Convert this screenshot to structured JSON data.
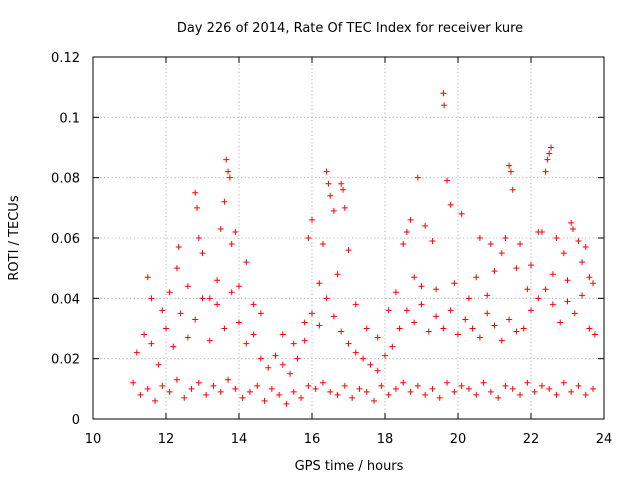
{
  "chart_data": {
    "type": "scatter",
    "title": "Day 226 of 2014, Rate Of TEC Index for receiver kure",
    "xlabel": "GPS time / hours",
    "ylabel": "ROTI / TECUs",
    "xlim": [
      10,
      24
    ],
    "ylim": [
      0,
      0.12
    ],
    "xticks": [
      "10",
      "12",
      "14",
      "16",
      "18",
      "20",
      "22",
      "24"
    ],
    "yticks": [
      "0",
      "0.02",
      "0.04",
      "0.06",
      "0.08",
      "0.1",
      "0.12"
    ],
    "grid": true,
    "marker": "plus",
    "color": "#ff0000",
    "series": [
      {
        "x": [
          11.1,
          11.3,
          11.5,
          11.7,
          11.9,
          12.1,
          12.3,
          12.5,
          12.7,
          12.9,
          13.1,
          13.3,
          13.5,
          13.7,
          13.9,
          14.1,
          14.3,
          14.5,
          14.7,
          14.9,
          15.1,
          15.3,
          15.5,
          15.7,
          15.9,
          16.1,
          16.3,
          16.5,
          16.7,
          16.9,
          17.1,
          17.3,
          17.5,
          17.7,
          17.9,
          18.1,
          18.3,
          18.5,
          18.7,
          18.9,
          19.1,
          19.3,
          19.5,
          19.7,
          19.9,
          20.1,
          20.3,
          20.5,
          20.7,
          20.9,
          21.1,
          21.3,
          21.5,
          21.7,
          21.9,
          22.1,
          22.3,
          22.5,
          22.7,
          22.9,
          23.1,
          23.3,
          23.5,
          23.7,
          11.2,
          11.4,
          11.6,
          11.8,
          12.0,
          12.2,
          12.4,
          12.6,
          12.8,
          13.0,
          13.2,
          13.4,
          13.6,
          13.8,
          14.0,
          14.2,
          14.4,
          14.6,
          14.8,
          15.0,
          15.2,
          15.4,
          15.6,
          15.8,
          16.0,
          16.2,
          16.4,
          16.6,
          16.8,
          17.0,
          17.2,
          17.4,
          17.6,
          17.8,
          18.0,
          18.2,
          18.4,
          18.6,
          18.8,
          19.0,
          19.2,
          19.4,
          19.6,
          19.8,
          20.0,
          20.2,
          20.4,
          20.6,
          20.8,
          21.0,
          21.2,
          21.4,
          21.6,
          21.8,
          22.0,
          22.2,
          22.4,
          22.6,
          22.8,
          23.0,
          23.2,
          23.4,
          23.6,
          23.75,
          12.8,
          12.85,
          13.65,
          13.7,
          13.75,
          13.6,
          16.4,
          16.45,
          16.5,
          16.8,
          16.85,
          18.9,
          19.6,
          19.62,
          19.7,
          21.4,
          21.45,
          21.5,
          22.4,
          22.45,
          22.5,
          22.55,
          23.1,
          23.15,
          12.3,
          12.35,
          12.9,
          13.0,
          13.5,
          13.8,
          13.9,
          14.2,
          15.9,
          16.0,
          16.3,
          16.6,
          16.9,
          17.0,
          18.5,
          18.6,
          18.7,
          19.1,
          19.3,
          19.8,
          20.1,
          20.6,
          20.9,
          21.2,
          21.3,
          21.7,
          22.2,
          22.3,
          22.7,
          22.9,
          23.3,
          23.5,
          11.5,
          11.6,
          11.9,
          12.1,
          12.6,
          13.2,
          13.4,
          14.0,
          14.4,
          14.6,
          15.2,
          15.5,
          15.8,
          16.2,
          16.7,
          17.2,
          17.5,
          17.8,
          18.1,
          18.3,
          18.8,
          19.0,
          19.4,
          19.9,
          20.3,
          20.5,
          20.8,
          21.0,
          21.6,
          21.9,
          22.0,
          22.6,
          23.0,
          23.4,
          23.6,
          23.7
        ],
        "y": [
          0.012,
          0.008,
          0.01,
          0.006,
          0.011,
          0.009,
          0.013,
          0.007,
          0.01,
          0.012,
          0.008,
          0.011,
          0.009,
          0.013,
          0.01,
          0.007,
          0.009,
          0.011,
          0.006,
          0.01,
          0.008,
          0.005,
          0.009,
          0.007,
          0.011,
          0.01,
          0.012,
          0.009,
          0.008,
          0.011,
          0.007,
          0.01,
          0.009,
          0.006,
          0.011,
          0.008,
          0.01,
          0.012,
          0.009,
          0.011,
          0.008,
          0.01,
          0.007,
          0.012,
          0.009,
          0.011,
          0.01,
          0.008,
          0.012,
          0.009,
          0.007,
          0.011,
          0.01,
          0.008,
          0.012,
          0.009,
          0.011,
          0.01,
          0.008,
          0.012,
          0.009,
          0.011,
          0.008,
          0.01,
          0.022,
          0.028,
          0.025,
          0.018,
          0.03,
          0.024,
          0.035,
          0.027,
          0.033,
          0.04,
          0.026,
          0.038,
          0.03,
          0.042,
          0.032,
          0.025,
          0.028,
          0.02,
          0.017,
          0.021,
          0.018,
          0.015,
          0.02,
          0.026,
          0.035,
          0.031,
          0.04,
          0.034,
          0.029,
          0.025,
          0.022,
          0.02,
          0.018,
          0.016,
          0.021,
          0.024,
          0.03,
          0.036,
          0.032,
          0.038,
          0.029,
          0.034,
          0.03,
          0.036,
          0.028,
          0.033,
          0.03,
          0.027,
          0.035,
          0.031,
          0.026,
          0.033,
          0.029,
          0.03,
          0.036,
          0.04,
          0.043,
          0.038,
          0.032,
          0.039,
          0.035,
          0.041,
          0.03,
          0.028,
          0.075,
          0.07,
          0.086,
          0.082,
          0.08,
          0.072,
          0.082,
          0.078,
          0.074,
          0.078,
          0.076,
          0.08,
          0.108,
          0.104,
          0.079,
          0.084,
          0.082,
          0.076,
          0.082,
          0.086,
          0.088,
          0.09,
          0.065,
          0.063,
          0.05,
          0.057,
          0.06,
          0.055,
          0.063,
          0.058,
          0.062,
          0.052,
          0.06,
          0.066,
          0.058,
          0.069,
          0.07,
          0.056,
          0.058,
          0.062,
          0.066,
          0.064,
          0.059,
          0.071,
          0.068,
          0.06,
          0.058,
          0.055,
          0.06,
          0.058,
          0.062,
          0.062,
          0.06,
          0.055,
          0.059,
          0.057,
          0.047,
          0.04,
          0.036,
          0.042,
          0.044,
          0.04,
          0.046,
          0.044,
          0.038,
          0.035,
          0.028,
          0.025,
          0.032,
          0.045,
          0.048,
          0.038,
          0.03,
          0.027,
          0.036,
          0.042,
          0.047,
          0.044,
          0.043,
          0.045,
          0.04,
          0.047,
          0.041,
          0.049,
          0.05,
          0.043,
          0.051,
          0.048,
          0.046,
          0.052,
          0.047,
          0.045
        ]
      }
    ]
  }
}
